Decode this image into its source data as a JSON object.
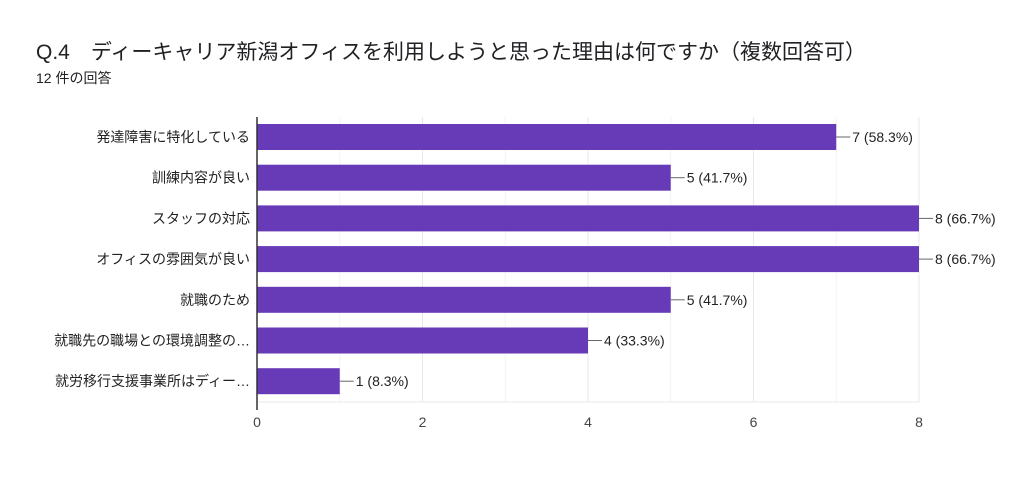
{
  "header": {
    "title": "Q.4　ディーキャリア新潟オフィスを利用しようと思った理由は何ですか（複数回答可）",
    "responses": "12 件の回答"
  },
  "colors": {
    "bar": "#673ab7",
    "grid": "#e8e8e8",
    "axis": "#333333",
    "text": "#222222"
  },
  "chart_data": {
    "type": "bar",
    "orientation": "horizontal",
    "title": "Q.4　ディーキャリア新潟オフィスを利用しようと思った理由は何ですか（複数回答可）",
    "categories": [
      "発達障害に特化している",
      "訓練内容が良い",
      "スタッフの対応",
      "オフィスの雰囲気が良い",
      "就職のため",
      "就職先の職場との環境調整の…",
      "就労移行支援事業所はディー…"
    ],
    "values": [
      7,
      5,
      8,
      8,
      5,
      4,
      1
    ],
    "data_labels": [
      "7 (58.3%)",
      "5 (41.7%)",
      "8 (66.7%)",
      "8 (66.7%)",
      "5 (41.7%)",
      "4 (33.3%)",
      "1 (8.3%)"
    ],
    "xlim": [
      0,
      8
    ],
    "xticks": [
      "0",
      "2",
      "4",
      "6",
      "8"
    ],
    "grid": true,
    "xlabel": "",
    "ylabel": ""
  }
}
